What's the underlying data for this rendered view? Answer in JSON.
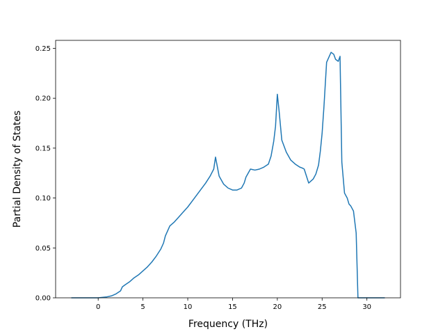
{
  "chart_data": {
    "type": "line",
    "title": "",
    "xlabel": "Frequency (THz)",
    "ylabel": "Partial Density of States",
    "xlim": [
      -4.75,
      33.75
    ],
    "ylim": [
      0.0,
      0.258
    ],
    "xticks": [
      0,
      5,
      10,
      15,
      20,
      25,
      30
    ],
    "yticks": [
      0.0,
      0.05,
      0.1,
      0.15,
      0.2,
      0.25
    ],
    "ytick_labels": [
      "0.00",
      "0.05",
      "0.10",
      "0.15",
      "0.20",
      "0.25"
    ],
    "grid": false,
    "legend": null,
    "series": [
      {
        "color": "#1f77b4",
        "x": [
          -3,
          0,
          1,
          1.5,
          2,
          2.5,
          2.7,
          3,
          3.5,
          4,
          4.5,
          5,
          5.5,
          6,
          6.5,
          7,
          7.3,
          7.5,
          8,
          8.5,
          9,
          9.5,
          10,
          10.5,
          11,
          11.5,
          12,
          12.5,
          12.9,
          13.1,
          13.5,
          14,
          14.5,
          15,
          15.5,
          16,
          16.3,
          16.5,
          17,
          17.5,
          18,
          18.5,
          19,
          19.3,
          19.6,
          19.8,
          20,
          20.2,
          20.5,
          21,
          21.5,
          22,
          22.5,
          22.8,
          23,
          23.5,
          24,
          24.3,
          24.6,
          24.8,
          25,
          25.2,
          25.5,
          25.7,
          26,
          26.3,
          26.5,
          26.8,
          27,
          27.2,
          27.5,
          27.8,
          28,
          28.2,
          28.5,
          28.8,
          29,
          30,
          32
        ],
        "y": [
          0.0,
          0.0,
          0.001,
          0.002,
          0.004,
          0.007,
          0.011,
          0.013,
          0.016,
          0.02,
          0.023,
          0.027,
          0.031,
          0.036,
          0.042,
          0.049,
          0.055,
          0.062,
          0.072,
          0.076,
          0.081,
          0.086,
          0.091,
          0.097,
          0.103,
          0.109,
          0.115,
          0.122,
          0.129,
          0.141,
          0.122,
          0.114,
          0.11,
          0.108,
          0.108,
          0.11,
          0.115,
          0.121,
          0.129,
          0.128,
          0.129,
          0.131,
          0.134,
          0.142,
          0.157,
          0.172,
          0.204,
          0.187,
          0.158,
          0.146,
          0.138,
          0.134,
          0.131,
          0.13,
          0.129,
          0.115,
          0.119,
          0.124,
          0.133,
          0.147,
          0.165,
          0.191,
          0.236,
          0.24,
          0.246,
          0.244,
          0.239,
          0.237,
          0.242,
          0.136,
          0.105,
          0.1,
          0.094,
          0.092,
          0.087,
          0.065,
          0.0,
          0.0,
          0.0
        ]
      }
    ]
  }
}
